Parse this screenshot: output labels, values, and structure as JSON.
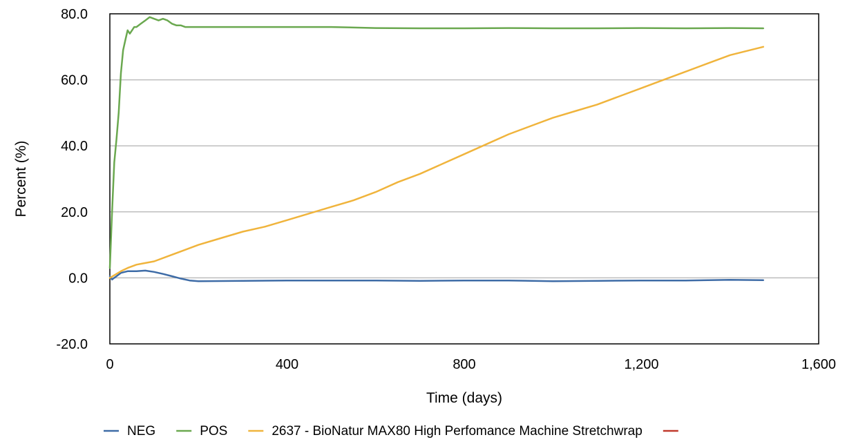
{
  "chart_data": {
    "type": "line",
    "title": "",
    "xlabel": "Time (days)",
    "ylabel": "Percent (%)",
    "xlim": [
      0,
      1600
    ],
    "ylim": [
      -20,
      80
    ],
    "x_ticks": [
      0,
      400,
      800,
      1200,
      1600
    ],
    "x_tick_labels": [
      "0",
      "400",
      "800",
      "1,200",
      "1,600"
    ],
    "y_ticks": [
      -20,
      0,
      20,
      40,
      60,
      80
    ],
    "y_tick_labels": [
      "-20.0",
      "0.0",
      "20.0",
      "40.0",
      "60.0",
      "80.0"
    ],
    "grid": "horizontal",
    "legend_position": "bottom",
    "series": [
      {
        "name": "NEG",
        "color": "#3d6ba6",
        "x": [
          0,
          5,
          10,
          15,
          25,
          40,
          60,
          80,
          100,
          120,
          140,
          160,
          180,
          200,
          300,
          400,
          500,
          600,
          700,
          800,
          900,
          1000,
          1100,
          1200,
          1300,
          1400,
          1475
        ],
        "y": [
          0.5,
          -0.5,
          0.0,
          0.5,
          1.5,
          2.0,
          2.0,
          2.2,
          1.8,
          1.2,
          0.5,
          -0.2,
          -0.8,
          -1.0,
          -0.9,
          -0.8,
          -0.8,
          -0.8,
          -0.9,
          -0.8,
          -0.8,
          -1.0,
          -0.9,
          -0.8,
          -0.8,
          -0.6,
          -0.7
        ]
      },
      {
        "name": "POS",
        "color": "#6aa84f",
        "x": [
          0,
          5,
          10,
          15,
          20,
          25,
          30,
          35,
          40,
          45,
          50,
          55,
          60,
          70,
          80,
          90,
          100,
          110,
          120,
          130,
          140,
          150,
          160,
          170,
          200,
          300,
          400,
          500,
          600,
          700,
          800,
          900,
          1000,
          1100,
          1200,
          1300,
          1400,
          1475
        ],
        "y": [
          3,
          20,
          35,
          42,
          50,
          62,
          69,
          72,
          75,
          74,
          75,
          76,
          76,
          77,
          78,
          79,
          78.5,
          78,
          78.5,
          78,
          77,
          76.5,
          76.5,
          76,
          76,
          76,
          76,
          76,
          75.7,
          75.6,
          75.6,
          75.7,
          75.6,
          75.6,
          75.7,
          75.6,
          75.7,
          75.6
        ]
      },
      {
        "name": "2637 - BioNatur MAX80 High Perfomance Machine Stretchwrap",
        "color": "#f0b43c",
        "x": [
          0,
          25,
          40,
          60,
          80,
          100,
          130,
          160,
          200,
          250,
          300,
          350,
          400,
          450,
          500,
          550,
          600,
          650,
          700,
          750,
          800,
          850,
          900,
          950,
          1000,
          1050,
          1100,
          1150,
          1200,
          1250,
          1300,
          1350,
          1400,
          1475
        ],
        "y": [
          0,
          2,
          3,
          4,
          4.5,
          5,
          6.5,
          8,
          10,
          12,
          14,
          15.5,
          17.5,
          19.5,
          21.5,
          23.5,
          26,
          29,
          31.5,
          34.5,
          37.5,
          40.5,
          43.5,
          46,
          48.5,
          50.5,
          52.5,
          55,
          57.5,
          60,
          62.5,
          65,
          67.5,
          70
        ]
      },
      {
        "name": "",
        "color": "#c0392b",
        "x": [],
        "y": []
      }
    ]
  }
}
